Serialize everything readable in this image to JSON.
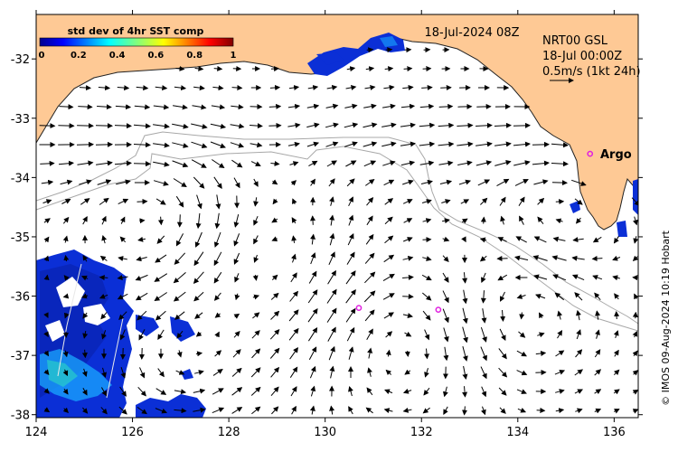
{
  "map": {
    "date_label": "18-Jul-2024 08Z",
    "product_label": "NRT00 GSL",
    "product_time": "18-Jul 00:00Z",
    "scale_label": "0.5m/s (1kt 24h)",
    "argo_label": "Argo",
    "credit": "© IMOS 09-Aug-2024 10:19 Hobart",
    "colorbar": {
      "title": "std dev of 4hr SST comp",
      "ticks": [
        "0",
        "0.2",
        "0.4",
        "0.6",
        "0.8",
        "1"
      ]
    },
    "x_ticks": [
      "124",
      "126",
      "128",
      "130",
      "132",
      "134",
      "136"
    ],
    "y_ticks": [
      "-32",
      "-33",
      "-34",
      "-35",
      "-36",
      "-37",
      "-38"
    ],
    "x_range": [
      124,
      136.5
    ],
    "y_range": [
      -38.05,
      -31.25
    ],
    "colors": {
      "land": "#fec995",
      "ocean": "#ffffff",
      "argo": "#e020e0",
      "bathy": "#a8a8a8"
    },
    "argo_floats": [
      {
        "lon": 135.5,
        "lat": -33.6
      },
      {
        "lon": 130.7,
        "lat": -36.2
      },
      {
        "lon": 132.35,
        "lat": -36.23
      }
    ]
  }
}
